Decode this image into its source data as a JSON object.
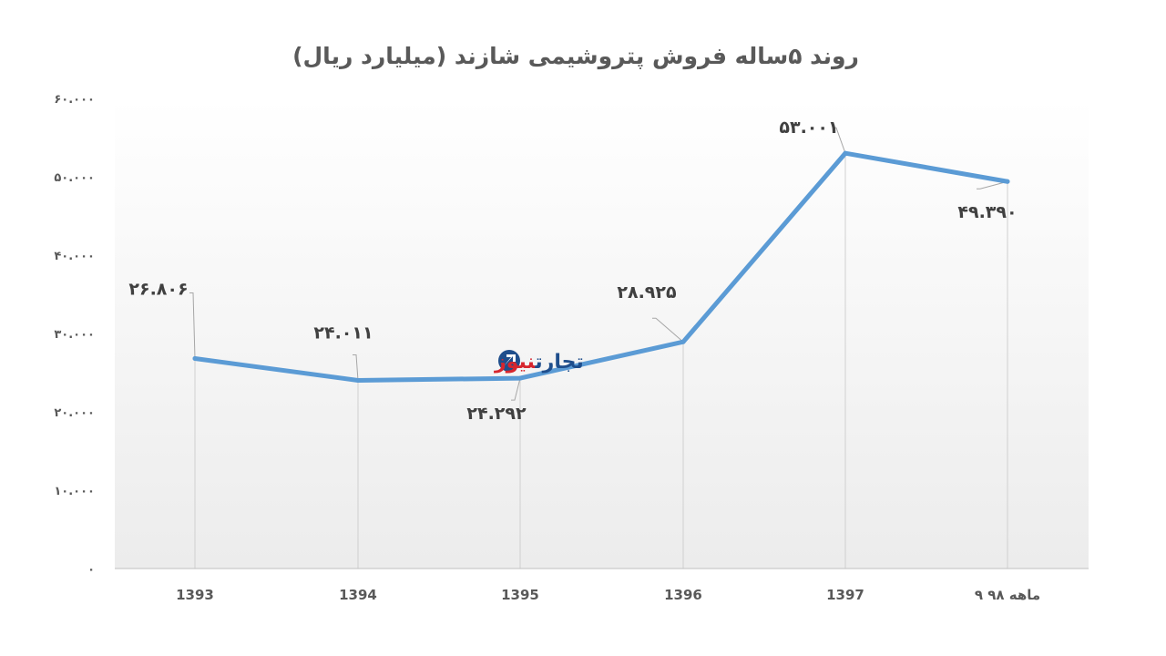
{
  "chart_data": {
    "type": "line",
    "title": "روند ۵ساله فروش پتروشیمی شازند (میلیارد ریال)",
    "categories": [
      "1393",
      "1394",
      "1395",
      "1396",
      "1397",
      "۹ ماهه ۹۸"
    ],
    "series": [
      {
        "values": [
          26806,
          24011,
          24292,
          28925,
          53001,
          49390
        ],
        "color": "#5B9BD5"
      }
    ],
    "data_labels": [
      "۲۶.۸۰۶",
      "۲۴.۰۱۱",
      "۲۴.۲۹۲",
      "۲۸.۹۲۵",
      "۵۳.۰۰۱",
      "۴۹.۳۹۰"
    ],
    "ylim": [
      0,
      60000
    ],
    "yticks": [
      {
        "value": 0,
        "label": "۰"
      },
      {
        "value": 10000,
        "label": "۱۰.۰۰۰"
      },
      {
        "value": 20000,
        "label": "۲۰.۰۰۰"
      },
      {
        "value": 30000,
        "label": "۳۰.۰۰۰"
      },
      {
        "value": 40000,
        "label": "۴۰.۰۰۰"
      },
      {
        "value": 50000,
        "label": "۵۰.۰۰۰"
      },
      {
        "value": 60000,
        "label": "۶۰.۰۰۰"
      }
    ],
    "xlabel": "",
    "ylabel": "",
    "grid": false,
    "legend": "none"
  },
  "watermark": {
    "text_part1": "تجارت",
    "text_part2": "نیوز",
    "icon": "logo-circle-icon",
    "color1": "#1F4E8C",
    "color2": "#D7262E"
  }
}
